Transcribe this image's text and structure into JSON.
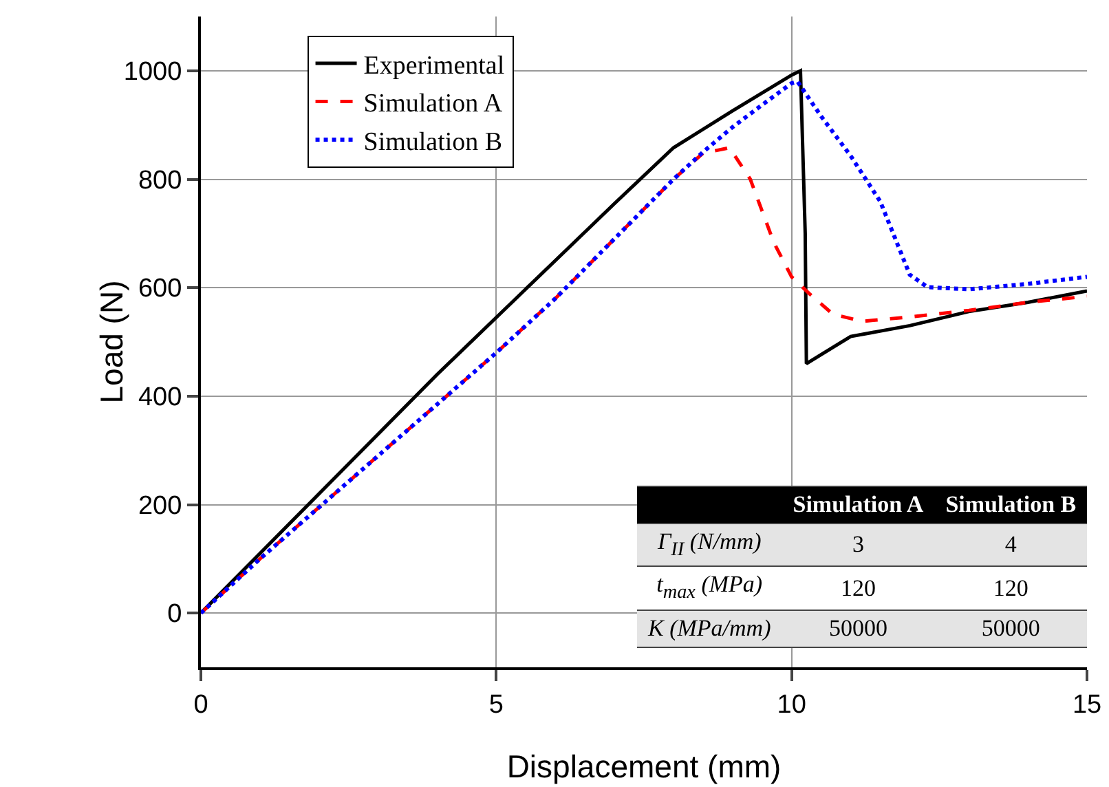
{
  "chart_data": {
    "type": "line",
    "xlabel": "Displacement (mm)",
    "ylabel": "Load (N)",
    "xlim": [
      0,
      15
    ],
    "ylim": [
      -100,
      1100
    ],
    "xticks": [
      0,
      5,
      10,
      15
    ],
    "yticks": [
      0,
      200,
      400,
      600,
      800,
      1000
    ],
    "grid": true,
    "legend": "top left",
    "marker": "none",
    "series": [
      {
        "name": "Experimental",
        "color": "#000000",
        "line_style": "solid",
        "x": [
          0,
          1,
          2,
          3,
          4,
          5,
          6,
          7,
          8,
          9,
          10,
          10.15,
          10.23,
          10.25,
          11,
          12,
          13,
          14,
          15
        ],
        "values": [
          0,
          110,
          220,
          330,
          440,
          545,
          650,
          755,
          858,
          926,
          992,
          1000,
          700,
          460,
          510,
          530,
          556,
          573,
          594
        ]
      },
      {
        "name": "Simulation A",
        "color": "#ff0000",
        "line_style": "dashed",
        "x": [
          0,
          1,
          2,
          3,
          4,
          5,
          6,
          7,
          8,
          8.5,
          8.95,
          9.3,
          9.7,
          10,
          10.3,
          10.7,
          11.2,
          12,
          13,
          14,
          15
        ],
        "values": [
          0,
          100,
          195,
          290,
          385,
          480,
          580,
          690,
          800,
          848,
          858,
          800,
          683,
          620,
          589,
          551,
          538,
          546,
          558,
          573,
          584
        ]
      },
      {
        "name": "Simulation B",
        "color": "#0000ff",
        "line_style": "dotted",
        "x": [
          0,
          1,
          2,
          3,
          4,
          5,
          6,
          7,
          8,
          8.5,
          9,
          9.5,
          10,
          10.1,
          10.5,
          11,
          11.5,
          12,
          12.3,
          13,
          14,
          15
        ],
        "values": [
          0,
          100,
          195,
          290,
          385,
          480,
          580,
          690,
          800,
          850,
          896,
          937,
          977,
          980,
          916,
          843,
          759,
          624,
          601,
          597,
          607,
          620
        ]
      }
    ],
    "annotations": [
      "Simulation A",
      "Simulation B",
      "Γ$_{II}$ (N/mm)",
      "3",
      "4",
      "t$_{max}$ (MPa)",
      "120",
      "120",
      "K (MPa/mm)",
      "50000",
      "50000"
    ]
  }
}
